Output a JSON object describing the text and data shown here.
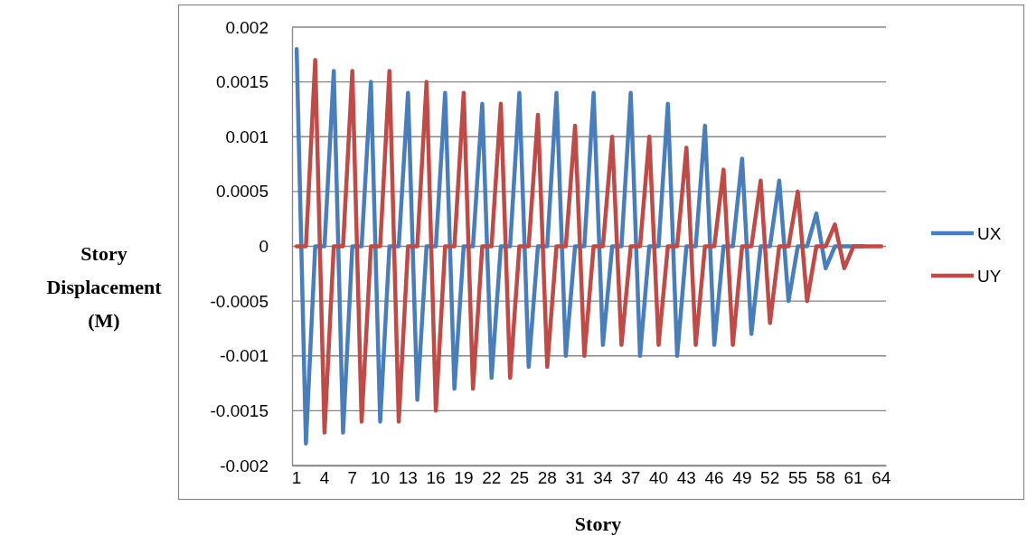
{
  "chart_data": {
    "type": "line",
    "xlabel": "Story",
    "ylabel": "Story Displacement (M)",
    "categories": [
      "1",
      null,
      null,
      "4",
      null,
      null,
      "7",
      null,
      null,
      "10",
      null,
      null,
      "13",
      null,
      null,
      "16",
      null,
      null,
      "19",
      null,
      null,
      "22",
      null,
      null,
      "25",
      null,
      null,
      "28",
      null,
      null,
      "31",
      null,
      null,
      "34",
      null,
      null,
      "37",
      null,
      null,
      "40",
      null,
      null,
      "43",
      null,
      null,
      "46",
      null,
      null,
      "49",
      null,
      null,
      "52",
      null,
      null,
      "55",
      null,
      null,
      "58",
      null,
      null,
      "61",
      null,
      null,
      "64"
    ],
    "series": [
      {
        "name": "UX",
        "color": "#4a7ebb",
        "values": [
          0.0018,
          -0.0018,
          0,
          0,
          0.0016,
          -0.0017,
          0,
          0,
          0.0015,
          -0.0016,
          0,
          0,
          0.0014,
          -0.0014,
          0,
          0,
          0.0014,
          -0.0013,
          0,
          0,
          0.0013,
          -0.0012,
          0,
          0,
          0.0014,
          -0.0011,
          0,
          0,
          0.0014,
          -0.001,
          0,
          0,
          0.0014,
          -0.0009,
          0,
          0,
          0.0014,
          -0.001,
          0,
          0,
          0.0013,
          -0.001,
          0,
          0,
          0.0011,
          -0.0009,
          0,
          0,
          0.0008,
          -0.0008,
          0,
          0,
          0.0006,
          -0.0005,
          0,
          0,
          0.0003,
          -0.0002,
          0,
          0,
          0,
          0,
          null,
          null
        ]
      },
      {
        "name": "UY",
        "color": "#be4b48",
        "values": [
          0,
          0,
          0.0017,
          -0.0017,
          0,
          0,
          0.0016,
          -0.0016,
          0,
          0,
          0.0016,
          -0.0016,
          0,
          0,
          0.0015,
          -0.0015,
          0,
          0,
          0.0014,
          -0.0013,
          0,
          0,
          0.0013,
          -0.0012,
          0,
          0,
          0.0012,
          -0.0011,
          0,
          0,
          0.0011,
          -0.001,
          0,
          0,
          0.001,
          -0.0009,
          0,
          0,
          0.001,
          -0.0009,
          0,
          0,
          0.0009,
          -0.0009,
          0,
          0,
          0.0007,
          -0.0009,
          0,
          0,
          0.0006,
          -0.0007,
          0,
          0,
          0.0005,
          -0.0005,
          0,
          0,
          0.0002,
          -0.0002,
          0,
          0,
          0,
          0
        ]
      }
    ],
    "ylim": [
      -0.002,
      0.002
    ],
    "yticks": [
      0.002,
      0.0015,
      0.001,
      0.0005,
      0,
      -0.0005,
      -0.001,
      -0.0015,
      -0.002
    ],
    "grid": "y",
    "legend": "right",
    "marker": "none",
    "line_style": "solid"
  }
}
